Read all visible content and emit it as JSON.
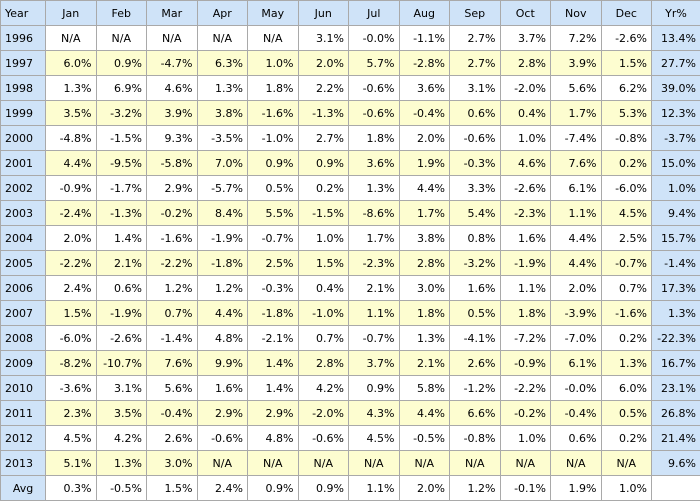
{
  "table": {
    "headers": [
      "Year",
      "Jan",
      "Feb",
      "Mar",
      "Apr",
      "May",
      "Jun",
      "Jul",
      "Aug",
      "Sep",
      "Oct",
      "Nov",
      "Dec",
      "Yr%"
    ],
    "rows": [
      {
        "year": "1996",
        "months": [
          "N/A",
          "N/A",
          "N/A",
          "N/A",
          "N/A",
          "3.1%",
          "-0.0%",
          "-1.1%",
          "2.7%",
          "3.7%",
          "7.2%",
          "-2.6%"
        ],
        "total": "13.4%"
      },
      {
        "year": "1997",
        "months": [
          "6.0%",
          "0.9%",
          "-4.7%",
          "6.3%",
          "1.0%",
          "2.0%",
          "5.7%",
          "-2.8%",
          "2.7%",
          "2.8%",
          "3.9%",
          "1.5%"
        ],
        "total": "27.7%"
      },
      {
        "year": "1998",
        "months": [
          "1.3%",
          "6.9%",
          "4.6%",
          "1.3%",
          "1.8%",
          "2.2%",
          "-0.6%",
          "3.6%",
          "3.1%",
          "-2.0%",
          "5.6%",
          "6.2%"
        ],
        "total": "39.0%"
      },
      {
        "year": "1999",
        "months": [
          "3.5%",
          "-3.2%",
          "3.9%",
          "3.8%",
          "-1.6%",
          "-1.3%",
          "-0.6%",
          "-0.4%",
          "0.6%",
          "0.4%",
          "1.7%",
          "5.3%"
        ],
        "total": "12.3%"
      },
      {
        "year": "2000",
        "months": [
          "-4.8%",
          "-1.5%",
          "9.3%",
          "-3.5%",
          "-1.0%",
          "2.7%",
          "1.8%",
          "2.0%",
          "-0.6%",
          "1.0%",
          "-7.4%",
          "-0.8%"
        ],
        "total": "-3.7%"
      },
      {
        "year": "2001",
        "months": [
          "4.4%",
          "-9.5%",
          "-5.8%",
          "7.0%",
          "0.9%",
          "0.9%",
          "3.6%",
          "1.9%",
          "-0.3%",
          "4.6%",
          "7.6%",
          "0.2%"
        ],
        "total": "15.0%"
      },
      {
        "year": "2002",
        "months": [
          "-0.9%",
          "-1.7%",
          "2.9%",
          "-5.7%",
          "0.5%",
          "0.2%",
          "1.3%",
          "4.4%",
          "3.3%",
          "-2.6%",
          "6.1%",
          "-6.0%"
        ],
        "total": "1.0%"
      },
      {
        "year": "2003",
        "months": [
          "-2.4%",
          "-1.3%",
          "-0.2%",
          "8.4%",
          "5.5%",
          "-1.5%",
          "-8.6%",
          "1.7%",
          "5.4%",
          "-2.3%",
          "1.1%",
          "4.5%"
        ],
        "total": "9.4%"
      },
      {
        "year": "2004",
        "months": [
          "2.0%",
          "1.4%",
          "-1.6%",
          "-1.9%",
          "-0.7%",
          "1.0%",
          "1.7%",
          "3.8%",
          "0.8%",
          "1.6%",
          "4.4%",
          "2.5%"
        ],
        "total": "15.7%"
      },
      {
        "year": "2005",
        "months": [
          "-2.2%",
          "2.1%",
          "-2.2%",
          "-1.8%",
          "2.5%",
          "1.5%",
          "-2.3%",
          "2.8%",
          "-3.2%",
          "-1.9%",
          "4.4%",
          "-0.7%"
        ],
        "total": "-1.4%"
      },
      {
        "year": "2006",
        "months": [
          "2.4%",
          "0.6%",
          "1.2%",
          "1.2%",
          "-0.3%",
          "0.4%",
          "2.1%",
          "3.0%",
          "1.6%",
          "1.1%",
          "2.0%",
          "0.7%"
        ],
        "total": "17.3%"
      },
      {
        "year": "2007",
        "months": [
          "1.5%",
          "-1.9%",
          "0.7%",
          "4.4%",
          "-1.8%",
          "-1.0%",
          "1.1%",
          "1.8%",
          "0.5%",
          "1.8%",
          "-3.9%",
          "-1.6%"
        ],
        "total": "1.3%"
      },
      {
        "year": "2008",
        "months": [
          "-6.0%",
          "-2.6%",
          "-1.4%",
          "4.8%",
          "-2.1%",
          "0.7%",
          "-0.7%",
          "1.3%",
          "-4.1%",
          "-7.2%",
          "-7.0%",
          "0.2%"
        ],
        "total": "-22.3%"
      },
      {
        "year": "2009",
        "months": [
          "-8.2%",
          "-10.7%",
          "7.6%",
          "9.9%",
          "1.4%",
          "2.8%",
          "3.7%",
          "2.1%",
          "2.6%",
          "-0.9%",
          "6.1%",
          "1.3%"
        ],
        "total": "16.7%"
      },
      {
        "year": "2010",
        "months": [
          "-3.6%",
          "3.1%",
          "5.6%",
          "1.6%",
          "1.4%",
          "4.2%",
          "0.9%",
          "5.8%",
          "-1.2%",
          "-2.2%",
          "-0.0%",
          "6.0%"
        ],
        "total": "23.1%"
      },
      {
        "year": "2011",
        "months": [
          "2.3%",
          "3.5%",
          "-0.4%",
          "2.9%",
          "2.9%",
          "-2.0%",
          "4.3%",
          "4.4%",
          "6.6%",
          "-0.2%",
          "-0.4%",
          "0.5%"
        ],
        "total": "26.8%"
      },
      {
        "year": "2012",
        "months": [
          "4.5%",
          "4.2%",
          "2.6%",
          "-0.6%",
          "4.8%",
          "-0.6%",
          "4.5%",
          "-0.5%",
          "-0.8%",
          "1.0%",
          "0.6%",
          "0.2%"
        ],
        "total": "21.4%"
      },
      {
        "year": "2013",
        "months": [
          "5.1%",
          "1.3%",
          "3.0%",
          "N/A",
          "N/A",
          "N/A",
          "N/A",
          "N/A",
          "N/A",
          "N/A",
          "N/A",
          "N/A"
        ],
        "total": "9.6%"
      }
    ],
    "avg_row": {
      "year": "Avg",
      "months": [
        "0.3%",
        "-0.5%",
        "1.5%",
        "2.4%",
        "0.9%",
        "0.9%",
        "1.1%",
        "2.0%",
        "1.2%",
        "-0.1%",
        "1.9%",
        "1.0%"
      ],
      "total": ""
    },
    "colors": {
      "header_bg": "#cfe3f8",
      "stripe_bg": "#fdfdd0",
      "border": "#a9a9a9"
    }
  }
}
